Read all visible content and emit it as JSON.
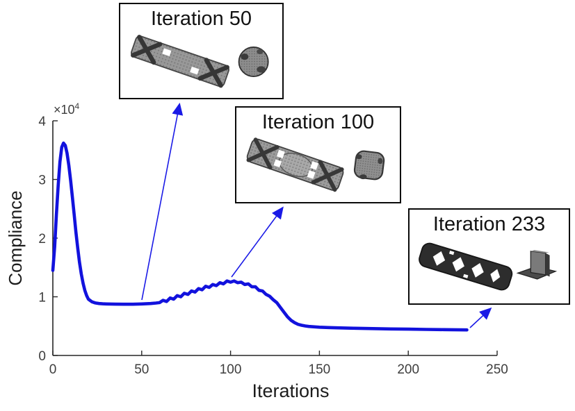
{
  "chart_data": {
    "type": "line",
    "xlabel": "Iterations",
    "ylabel": "Compliance",
    "y_multiplier_base": "×10",
    "y_multiplier_exp": "4",
    "xlim": [
      0,
      250
    ],
    "ylim": [
      0,
      4
    ],
    "xticks": [
      0,
      50,
      100,
      150,
      200,
      250
    ],
    "yticks": [
      0,
      1,
      2,
      3,
      4
    ],
    "grid": false,
    "legend": "none",
    "line_color": "#1212dd",
    "annotation_color": "#1a1ae6",
    "series": [
      {
        "name": "compliance",
        "units": "value × 10^4",
        "points": [
          [
            0,
            1.45
          ],
          [
            1,
            1.85
          ],
          [
            2,
            2.4
          ],
          [
            3,
            2.9
          ],
          [
            4,
            3.3
          ],
          [
            5,
            3.55
          ],
          [
            6,
            3.62
          ],
          [
            7,
            3.58
          ],
          [
            8,
            3.45
          ],
          [
            9,
            3.24
          ],
          [
            10,
            2.98
          ],
          [
            11,
            2.7
          ],
          [
            12,
            2.4
          ],
          [
            13,
            2.1
          ],
          [
            14,
            1.83
          ],
          [
            15,
            1.59
          ],
          [
            16,
            1.39
          ],
          [
            17,
            1.23
          ],
          [
            18,
            1.11
          ],
          [
            19,
            1.02
          ],
          [
            20,
            0.96
          ],
          [
            22,
            0.915
          ],
          [
            24,
            0.895
          ],
          [
            26,
            0.885
          ],
          [
            28,
            0.88
          ],
          [
            30,
            0.878
          ],
          [
            35,
            0.875
          ],
          [
            40,
            0.873
          ],
          [
            45,
            0.873
          ],
          [
            50,
            0.878
          ],
          [
            55,
            0.885
          ],
          [
            58,
            0.893
          ],
          [
            60,
            0.9
          ],
          [
            62,
            0.94
          ],
          [
            64,
            0.92
          ],
          [
            66,
            0.98
          ],
          [
            68,
            0.96
          ],
          [
            70,
            1.02
          ],
          [
            72,
            1.0
          ],
          [
            74,
            1.06
          ],
          [
            76,
            1.04
          ],
          [
            78,
            1.1
          ],
          [
            80,
            1.08
          ],
          [
            82,
            1.14
          ],
          [
            84,
            1.12
          ],
          [
            86,
            1.18
          ],
          [
            88,
            1.16
          ],
          [
            90,
            1.21
          ],
          [
            92,
            1.19
          ],
          [
            94,
            1.24
          ],
          [
            96,
            1.22
          ],
          [
            98,
            1.27
          ],
          [
            100,
            1.25
          ],
          [
            102,
            1.27
          ],
          [
            104,
            1.24
          ],
          [
            106,
            1.25
          ],
          [
            108,
            1.21
          ],
          [
            110,
            1.22
          ],
          [
            112,
            1.17
          ],
          [
            114,
            1.17
          ],
          [
            116,
            1.11
          ],
          [
            118,
            1.1
          ],
          [
            120,
            1.04
          ],
          [
            122,
            1.01
          ],
          [
            124,
            0.95
          ],
          [
            126,
            0.9
          ],
          [
            128,
            0.82
          ],
          [
            130,
            0.74
          ],
          [
            132,
            0.66
          ],
          [
            134,
            0.6
          ],
          [
            136,
            0.56
          ],
          [
            138,
            0.53
          ],
          [
            140,
            0.515
          ],
          [
            142,
            0.503
          ],
          [
            144,
            0.495
          ],
          [
            146,
            0.49
          ],
          [
            148,
            0.486
          ],
          [
            150,
            0.482
          ],
          [
            155,
            0.476
          ],
          [
            160,
            0.471
          ],
          [
            170,
            0.464
          ],
          [
            180,
            0.458
          ],
          [
            190,
            0.452
          ],
          [
            200,
            0.448
          ],
          [
            210,
            0.444
          ],
          [
            220,
            0.44
          ],
          [
            233,
            0.435
          ]
        ]
      }
    ]
  },
  "insets": [
    {
      "label": "Iteration 50",
      "points_to_iteration": 50,
      "left_image": "porous-lattice-beam",
      "right_image": "porous-node-blob"
    },
    {
      "label": "Iteration 100",
      "points_to_iteration": 100,
      "left_image": "lattice-beam-with-holes",
      "right_image": "rounded-polyhedron-node"
    },
    {
      "label": "Iteration 233",
      "points_to_iteration": 233,
      "left_image": "dark-truss-beam",
      "right_image": "t-section-bracket"
    }
  ]
}
